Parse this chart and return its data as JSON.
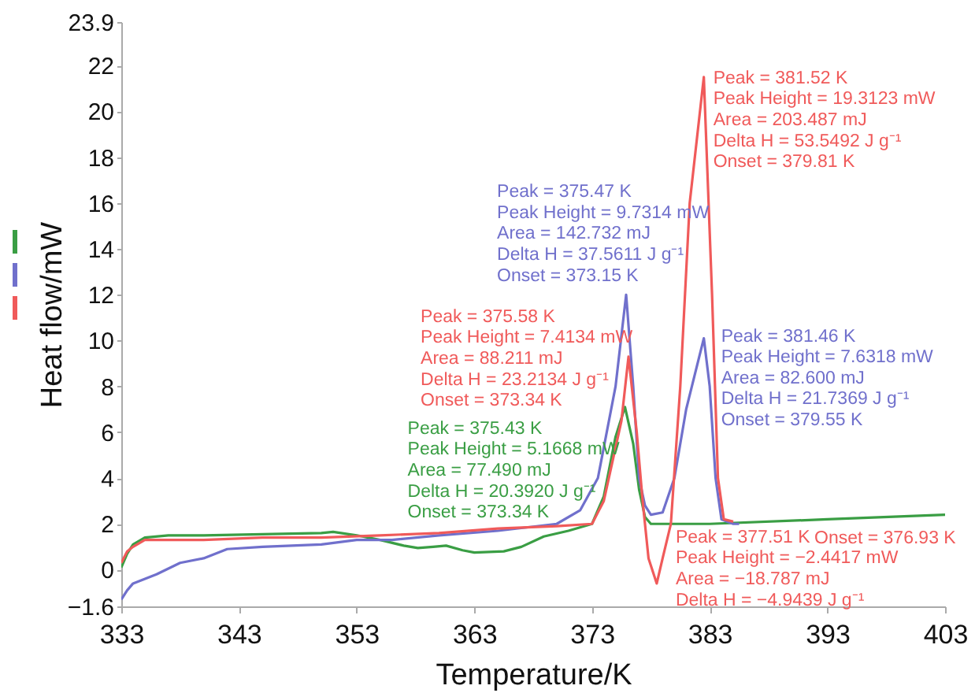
{
  "chart_data": {
    "type": "line",
    "xlabel": "Temperature/K",
    "ylabel": "Heat flow/mW",
    "xlim": [
      333,
      403
    ],
    "xticks": [
      333,
      343,
      353,
      363,
      373,
      383,
      393,
      403
    ],
    "ylim": [
      -1.6,
      23.9
    ],
    "yticks": [
      -1.6,
      0,
      2,
      4,
      6,
      8,
      10,
      12,
      14,
      16,
      18,
      20,
      22,
      23.9
    ],
    "grid": false,
    "marker": "none",
    "line_style": "solid",
    "series": [
      {
        "color": "#3a9e44",
        "x": [
          333,
          333.5,
          334,
          335,
          337,
          340,
          345,
          350,
          351,
          353,
          355,
          357,
          358.2,
          359.5,
          360.6,
          362,
          363,
          365.5,
          367,
          368.9,
          371,
          373,
          374,
          375,
          375.8,
          376.5,
          377,
          377.5,
          378,
          383,
          393,
          403
        ],
        "values": [
          0.1,
          0.7,
          1.1,
          1.4,
          1.5,
          1.5,
          1.55,
          1.6,
          1.65,
          1.5,
          1.3,
          1.05,
          0.95,
          1.0,
          1.05,
          0.85,
          0.75,
          0.8,
          1.0,
          1.45,
          1.7,
          2.0,
          3.2,
          5.8,
          7.1,
          5.5,
          3.5,
          2.3,
          2.0,
          2.0,
          2.2,
          2.4
        ]
      },
      {
        "color": "#7070cc",
        "x": [
          333,
          333.5,
          334,
          336,
          338,
          340,
          342,
          345,
          350,
          353,
          356,
          360,
          365,
          370,
          372,
          373.5,
          375,
          375.9,
          376.5,
          377,
          377.5,
          378,
          379,
          380,
          381,
          382.5,
          383,
          383.5,
          384,
          385,
          385.5
        ],
        "values": [
          -1.3,
          -0.9,
          -0.6,
          -0.2,
          0.3,
          0.5,
          0.9,
          1.0,
          1.1,
          1.3,
          1.3,
          1.5,
          1.7,
          2.0,
          2.6,
          4.0,
          8.0,
          12.0,
          8.0,
          4.0,
          2.8,
          2.4,
          2.5,
          4.0,
          7.0,
          10.1,
          8.0,
          4.0,
          2.2,
          2.0,
          2.0
        ]
      },
      {
        "color": "#f05a5a",
        "x": [
          333,
          333.5,
          334,
          335,
          340,
          345,
          350,
          355,
          360,
          365,
          370,
          373,
          374,
          375.5,
          376.1,
          376.8,
          377.3,
          377.8,
          378.5,
          379,
          379.7,
          380.5,
          381.3,
          382.5,
          383.2,
          383.7,
          384.2,
          385
        ],
        "values": [
          0.3,
          0.8,
          1.0,
          1.3,
          1.3,
          1.4,
          1.4,
          1.5,
          1.6,
          1.8,
          1.9,
          2.0,
          3.0,
          6.5,
          9.3,
          6.0,
          3.0,
          0.5,
          -0.6,
          0.5,
          2.0,
          8.0,
          16.0,
          21.5,
          12.0,
          4.0,
          2.2,
          2.1
        ]
      }
    ],
    "annotations": [
      {
        "text": "Peak = 381.52 K\nPeak Height = 19.3123 mW\nArea = 203.487 mJ\nDelta H = 53.5492 J g⁻¹\nOnset = 379.81 K",
        "x": 382.5,
        "y": 21.5
      },
      {
        "text": "Peak = 375.47 K\nPeak Height = 9.7314 mW\nArea = 142.732 mJ\nDelta H = 37.5611 J g⁻¹\nOnset = 373.15 K",
        "x": 375.9,
        "y": 12.0
      },
      {
        "text": "Peak = 375.58 K\nPeak Height = 7.4134 mW\nArea = 88.211 mJ\nDelta H = 23.2134 J g⁻¹\nOnset = 373.34 K",
        "x": 376.1,
        "y": 9.3
      },
      {
        "text": "Peak = 375.43 K\nPeak Height = 5.1668 mW\nArea = 77.490 mJ\nDelta H = 20.3920 J g⁻¹\nOnset = 373.34 K",
        "x": 375.8,
        "y": 7.1
      },
      {
        "text": "Peak = 381.46 K\nPeak Height = 7.6318 mW\nArea = 82.600 mJ\nDelta H = 21.7369 J g⁻¹\nOnset = 379.55 K",
        "x": 382.5,
        "y": 10.1
      },
      {
        "text": "Peak = 377.51 K\nPeak Height = −2.4417 mW\nArea = −18.787 mJ\nDelta H = −4.9439 J g⁻¹",
        "x": 378.5,
        "y": -0.6
      },
      "Onset = 376.93 K"
    ]
  }
}
